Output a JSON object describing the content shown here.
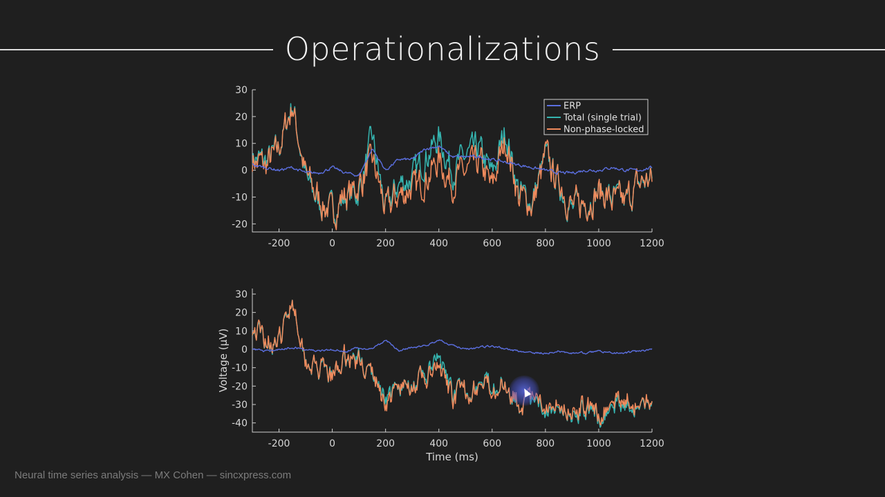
{
  "slide": {
    "title": "Operationalizations",
    "footer": "Neural time series analysis — MX Cohen — sincxpress.com"
  },
  "colors": {
    "background": "#1f1f1f",
    "erp": "#5b6fe0",
    "total": "#35b5b0",
    "nonphase": "#f08a5c",
    "axes": "#cfcfcf"
  },
  "chart_data": [
    {
      "type": "line",
      "xlim": [
        -300,
        1200
      ],
      "ylim": [
        -23,
        30
      ],
      "xticks": [
        -200,
        0,
        200,
        400,
        600,
        800,
        1000,
        1200
      ],
      "yticks": [
        -20,
        -10,
        0,
        10,
        20,
        30
      ],
      "xlabel": "",
      "ylabel": "",
      "legend": {
        "placement": "top-right",
        "entries": [
          "ERP",
          "Total (single trial)",
          "Non-phase-locked"
        ]
      },
      "series": [
        {
          "name": "ERP",
          "x": [
            -300,
            -250,
            -200,
            -150,
            -100,
            -50,
            0,
            50,
            100,
            150,
            200,
            250,
            300,
            350,
            400,
            450,
            500,
            550,
            600,
            650,
            700,
            750,
            800,
            850,
            900,
            950,
            1000,
            1050,
            1100,
            1150,
            1200
          ],
          "y": [
            2,
            1,
            0,
            1,
            -1,
            -1,
            1,
            -1,
            -2,
            8,
            0,
            4,
            4,
            8,
            9,
            5,
            5,
            5,
            4,
            3,
            2,
            1,
            0,
            -1,
            -1,
            0,
            0,
            1,
            0,
            0,
            1
          ]
        },
        {
          "name": "Total (single trial)",
          "x": [
            -300,
            -250,
            -200,
            -150,
            -100,
            -50,
            0,
            50,
            100,
            150,
            200,
            250,
            300,
            350,
            400,
            450,
            500,
            550,
            600,
            650,
            700,
            750,
            800,
            850,
            900,
            950,
            1000,
            1050,
            1100,
            1150,
            1200
          ],
          "y": [
            5,
            3,
            8,
            25,
            -3,
            -12,
            -15,
            -10,
            -8,
            12,
            -15,
            -5,
            -3,
            5,
            12,
            0,
            5,
            8,
            -2,
            15,
            -8,
            -12,
            5,
            -5,
            -15,
            -12,
            -8,
            -10,
            -12,
            -5,
            -3
          ]
        },
        {
          "name": "Non-phase-locked",
          "x": [
            -300,
            -250,
            -200,
            -150,
            -100,
            -50,
            0,
            50,
            100,
            150,
            200,
            250,
            300,
            350,
            400,
            450,
            500,
            550,
            600,
            650,
            700,
            750,
            800,
            850,
            900,
            950,
            1000,
            1050,
            1100,
            1150,
            1200
          ],
          "y": [
            4,
            2,
            8,
            24,
            -2,
            -11,
            -16,
            -9,
            -6,
            4,
            -15,
            -9,
            -7,
            -3,
            3,
            -5,
            0,
            3,
            -6,
            12,
            -10,
            -13,
            5,
            -4,
            -14,
            -12,
            -8,
            -11,
            -12,
            -5,
            -4
          ]
        }
      ]
    },
    {
      "type": "line",
      "xlim": [
        -300,
        1200
      ],
      "ylim": [
        -45,
        33
      ],
      "xticks": [
        -200,
        0,
        200,
        400,
        600,
        800,
        1000,
        1200
      ],
      "yticks": [
        -40,
        -30,
        -20,
        -10,
        0,
        10,
        20,
        30
      ],
      "xlabel": "Time (ms)",
      "ylabel": "Voltage (μV)",
      "series": [
        {
          "name": "ERP",
          "x": [
            -300,
            -250,
            -200,
            -150,
            -100,
            -50,
            0,
            50,
            100,
            150,
            200,
            250,
            300,
            350,
            400,
            450,
            500,
            550,
            600,
            650,
            700,
            750,
            800,
            850,
            900,
            950,
            1000,
            1050,
            1100,
            1150,
            1200
          ],
          "y": [
            0,
            -1,
            0,
            1,
            0,
            -1,
            0,
            -1,
            1,
            0,
            5,
            -1,
            1,
            2,
            5,
            2,
            0,
            1,
            2,
            0,
            -1,
            -2,
            -2,
            -1,
            -2,
            -2,
            -1,
            -2,
            -2,
            -1,
            0
          ]
        },
        {
          "name": "Total (single trial)",
          "x": [
            -300,
            -250,
            -200,
            -150,
            -100,
            -50,
            0,
            50,
            100,
            150,
            200,
            250,
            300,
            350,
            400,
            450,
            500,
            550,
            600,
            650,
            700,
            750,
            800,
            850,
            900,
            950,
            1000,
            1050,
            1100,
            1150,
            1200
          ],
          "y": [
            12,
            5,
            3,
            28,
            -5,
            -12,
            -15,
            -5,
            -5,
            -15,
            -25,
            -22,
            -18,
            -15,
            -5,
            -25,
            -22,
            -20,
            -18,
            -18,
            -30,
            -30,
            -32,
            -28,
            -35,
            -32,
            -38,
            -32,
            -28,
            -32,
            -30
          ]
        },
        {
          "name": "Non-phase-locked",
          "x": [
            -300,
            -250,
            -200,
            -150,
            -100,
            -50,
            0,
            50,
            100,
            150,
            200,
            250,
            300,
            350,
            400,
            450,
            500,
            550,
            600,
            650,
            700,
            750,
            800,
            850,
            900,
            950,
            1000,
            1050,
            1100,
            1150,
            1200
          ],
          "y": [
            13,
            6,
            3,
            28,
            -5,
            -11,
            -16,
            -4,
            -7,
            -14,
            -29,
            -21,
            -19,
            -17,
            -10,
            -27,
            -22,
            -21,
            -20,
            -18,
            -29,
            -28,
            -30,
            -27,
            -33,
            -30,
            -37,
            -30,
            -26,
            -31,
            -30
          ]
        }
      ]
    }
  ]
}
